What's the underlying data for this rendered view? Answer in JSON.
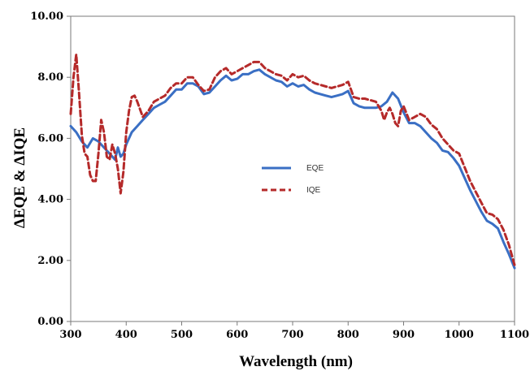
{
  "chart_data": {
    "type": "line",
    "xlabel": "Wavelength (nm)",
    "ylabel": "ΔEQE & ΔIQE",
    "xlim": [
      300,
      1100
    ],
    "ylim": [
      0,
      10
    ],
    "x_ticks": [
      "300",
      "400",
      "500",
      "600",
      "700",
      "800",
      "900",
      "1000",
      "1100"
    ],
    "y_ticks": [
      "0.00",
      "2.00",
      "4.00",
      "6.00",
      "8.00",
      "10.00"
    ],
    "grid": false,
    "legend_position": "center",
    "series": [
      {
        "name": "EQE",
        "color": "#3a6fc4",
        "style": "solid",
        "x": [
          300,
          310,
          320,
          330,
          340,
          350,
          360,
          370,
          380,
          385,
          390,
          395,
          400,
          410,
          420,
          430,
          440,
          450,
          460,
          470,
          480,
          490,
          500,
          510,
          520,
          530,
          540,
          550,
          560,
          570,
          580,
          590,
          600,
          610,
          620,
          630,
          640,
          650,
          660,
          670,
          680,
          690,
          700,
          710,
          720,
          730,
          740,
          750,
          760,
          770,
          780,
          790,
          800,
          810,
          820,
          830,
          840,
          850,
          860,
          870,
          880,
          890,
          900,
          910,
          920,
          930,
          940,
          950,
          960,
          970,
          980,
          990,
          1000,
          1010,
          1020,
          1030,
          1040,
          1050,
          1060,
          1070,
          1080,
          1090,
          1100
        ],
        "values": [
          6.4,
          6.2,
          5.9,
          5.7,
          6.0,
          5.9,
          5.7,
          5.5,
          5.3,
          5.7,
          5.4,
          5.5,
          5.8,
          6.2,
          6.4,
          6.6,
          6.8,
          7.0,
          7.1,
          7.2,
          7.4,
          7.6,
          7.6,
          7.8,
          7.8,
          7.7,
          7.45,
          7.5,
          7.7,
          7.9,
          8.05,
          7.9,
          7.95,
          8.1,
          8.1,
          8.2,
          8.25,
          8.1,
          8.0,
          7.9,
          7.85,
          7.7,
          7.8,
          7.7,
          7.75,
          7.6,
          7.5,
          7.45,
          7.4,
          7.35,
          7.4,
          7.45,
          7.55,
          7.15,
          7.05,
          7.0,
          7.0,
          7.0,
          7.05,
          7.2,
          7.5,
          7.3,
          6.85,
          6.5,
          6.5,
          6.4,
          6.2,
          6.0,
          5.85,
          5.6,
          5.55,
          5.35,
          5.1,
          4.7,
          4.3,
          3.95,
          3.6,
          3.3,
          3.2,
          3.05,
          2.6,
          2.2,
          1.75
        ]
      },
      {
        "name": "IQE",
        "color": "#b52a2a",
        "style": "dashed",
        "x": [
          300,
          305,
          310,
          315,
          320,
          325,
          330,
          335,
          340,
          345,
          350,
          355,
          360,
          365,
          370,
          375,
          380,
          385,
          390,
          395,
          400,
          405,
          410,
          415,
          420,
          430,
          440,
          450,
          460,
          470,
          480,
          490,
          500,
          510,
          520,
          530,
          540,
          550,
          560,
          570,
          580,
          590,
          600,
          610,
          620,
          630,
          640,
          650,
          660,
          670,
          680,
          690,
          700,
          710,
          720,
          730,
          740,
          750,
          760,
          770,
          780,
          790,
          800,
          810,
          820,
          830,
          840,
          850,
          860,
          865,
          870,
          875,
          880,
          885,
          890,
          895,
          900,
          910,
          920,
          930,
          940,
          950,
          960,
          970,
          980,
          990,
          1000,
          1010,
          1020,
          1030,
          1040,
          1050,
          1060,
          1070,
          1080,
          1090,
          1100
        ],
        "values": [
          6.8,
          8.0,
          8.75,
          7.5,
          6.1,
          5.5,
          5.4,
          4.8,
          4.6,
          4.6,
          5.5,
          6.6,
          6.2,
          5.4,
          5.3,
          5.8,
          5.5,
          5.0,
          4.2,
          4.9,
          6.2,
          6.9,
          7.35,
          7.4,
          7.2,
          6.7,
          6.9,
          7.2,
          7.3,
          7.4,
          7.65,
          7.8,
          7.8,
          8.0,
          8.0,
          7.75,
          7.55,
          7.6,
          8.0,
          8.2,
          8.3,
          8.1,
          8.2,
          8.3,
          8.4,
          8.5,
          8.5,
          8.3,
          8.2,
          8.1,
          8.05,
          7.9,
          8.1,
          8.0,
          8.05,
          7.9,
          7.8,
          7.75,
          7.7,
          7.65,
          7.7,
          7.75,
          7.85,
          7.35,
          7.3,
          7.3,
          7.25,
          7.2,
          6.9,
          6.6,
          6.85,
          7.0,
          6.8,
          6.5,
          6.4,
          6.9,
          7.05,
          6.6,
          6.7,
          6.8,
          6.7,
          6.45,
          6.3,
          6.0,
          5.8,
          5.6,
          5.5,
          5.05,
          4.6,
          4.25,
          3.9,
          3.55,
          3.5,
          3.35,
          3.0,
          2.5,
          1.85
        ]
      }
    ]
  }
}
